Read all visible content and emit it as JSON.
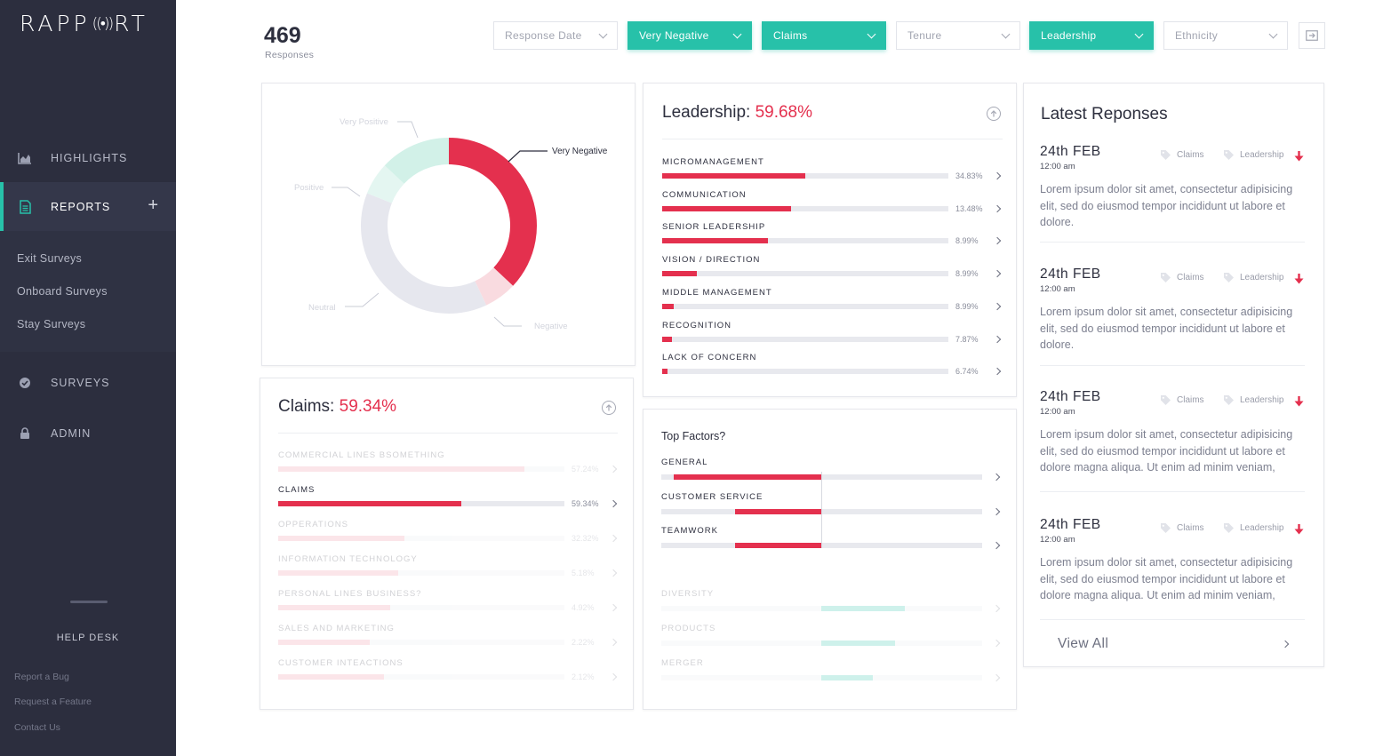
{
  "brand": {
    "logo_pre": "RAPP",
    "logo_sig": "((•))",
    "logo_post": "RT"
  },
  "sidebar": {
    "nav": [
      {
        "label": "HIGHLIGHTS",
        "icon": "chart-icon"
      },
      {
        "label": "REPORTS",
        "icon": "document-icon",
        "active": true
      },
      {
        "label": "SURVEYS",
        "icon": "check-circle-icon"
      },
      {
        "label": "ADMIN",
        "icon": "lock-icon"
      }
    ],
    "add_label": "+",
    "subnav": [
      "Exit Surveys",
      "Onboard Surveys",
      "Stay Surveys"
    ],
    "helpdesk": "HELP DESK",
    "help_links": [
      "Report a Bug",
      "Request a Feature",
      "Contact Us"
    ]
  },
  "header": {
    "responses_count": "469",
    "responses_label": "Responses",
    "filters": [
      {
        "label": "Response Date",
        "active": false
      },
      {
        "label": "Very Negative",
        "active": true
      },
      {
        "label": "Claims",
        "active": true
      },
      {
        "label": "Tenure",
        "active": false
      },
      {
        "label": "Leadership",
        "active": true
      },
      {
        "label": "Ethnicity",
        "active": false
      }
    ]
  },
  "donut": {
    "labels": {
      "very_positive": "Very Positive",
      "positive": "Positive",
      "neutral": "Neutral",
      "negative": "Negative",
      "very_negative": "Very Negative"
    },
    "chart_data": {
      "type": "pie",
      "categories": [
        "Very Negative",
        "Negative",
        "Neutral",
        "Positive",
        "Very Positive"
      ],
      "values": [
        37,
        6,
        38,
        6,
        13
      ]
    },
    "colors": {
      "very_negative": "#e4304e",
      "negative": "#f9dbe0",
      "neutral": "#e6e7ee",
      "positive": "#e4f6f1",
      "very_positive": "#d2f1e8"
    }
  },
  "leadership": {
    "title": "Leadership:",
    "percent": "59.68%",
    "rows": [
      {
        "label": "MICROMANAGEMENT",
        "value": "34.83%",
        "fill": 0.5
      },
      {
        "label": "COMMUNICATION",
        "value": "13.48%",
        "fill": 0.45
      },
      {
        "label": "SENIOR LEADERSHIP",
        "value": "8.99%",
        "fill": 0.37
      },
      {
        "label": "VISION / DIRECTION",
        "value": "8.99%",
        "fill": 0.12
      },
      {
        "label": "MIDDLE MANAGEMENT",
        "value": "8.99%",
        "fill": 0.04
      },
      {
        "label": "RECOGNITION",
        "value": "7.87%",
        "fill": 0.035
      },
      {
        "label": "LACK OF CONCERN",
        "value": "6.74%",
        "fill": 0.02
      }
    ]
  },
  "claims": {
    "title": "Claims:",
    "percent": "59.34%",
    "rows": [
      {
        "label": "COMMERCIAL LINES BSOMETHING",
        "value": "57.24%",
        "fill": 0.86,
        "faded": true
      },
      {
        "label": "CLAIMS",
        "value": "59.34%",
        "fill": 0.64,
        "faded": false
      },
      {
        "label": "OPPERATIONS",
        "value": "32.32%",
        "fill": 0.44,
        "faded": true
      },
      {
        "label": "INFORMATION TECHNOLOGY",
        "value": "5.18%",
        "fill": 0.42,
        "faded": true
      },
      {
        "label": "PERSONAL LINES BUSINESS?",
        "value": "4.92%",
        "fill": 0.39,
        "faded": true
      },
      {
        "label": "SALES AND MARKETING",
        "value": "2.22%",
        "fill": 0.32,
        "faded": true
      },
      {
        "label": "CUSTOMER INTEACTIONS",
        "value": "2.12%",
        "fill": 0.37,
        "faded": true
      }
    ]
  },
  "top_factors": {
    "title": "Top Factors?",
    "rows": [
      {
        "label": "GENERAL",
        "neg": 0.46,
        "pos": 0,
        "faded": false
      },
      {
        "label": "CUSTOMER SERVICE",
        "neg": 0.27,
        "pos": 0,
        "faded": false
      },
      {
        "label": "TEAMWORK",
        "neg": 0.27,
        "pos": 0,
        "faded": false
      },
      {
        "label": "DIVERSITY",
        "neg": 0,
        "pos": 0.26,
        "faded": true
      },
      {
        "label": "PRODUCTS",
        "neg": 0,
        "pos": 0.23,
        "faded": true
      },
      {
        "label": "MERGER",
        "neg": 0,
        "pos": 0.16,
        "faded": true
      }
    ]
  },
  "latest": {
    "title": "Latest Reponses",
    "tag1": "Claims",
    "tag2": "Leadership",
    "items": [
      {
        "date": "24th FEB",
        "time": "12:00 am",
        "text": "Lorem ipsum dolor sit amet, consectetur adipisicing elit, sed do eiusmod tempor incididunt ut labore et dolore."
      },
      {
        "date": "24th FEB",
        "time": "12:00 am",
        "text": "Lorem ipsum dolor sit amet, consectetur adipisicing elit, sed do eiusmod tempor incididunt ut labore et dolore."
      },
      {
        "date": "24th FEB",
        "time": "12:00 am",
        "text": "Lorem ipsum dolor sit amet, consectetur adipisicing elit, sed do eiusmod tempor incididunt ut labore et dolore magna aliqua. Ut enim ad minim veniam,"
      },
      {
        "date": "24th FEB",
        "time": "12:00 am",
        "text": "Lorem ipsum dolor sit amet, consectetur adipisicing elit, sed do eiusmod tempor incididunt ut labore et dolore magna aliqua. Ut enim ad minim veniam,"
      }
    ],
    "view_all": "View All"
  }
}
